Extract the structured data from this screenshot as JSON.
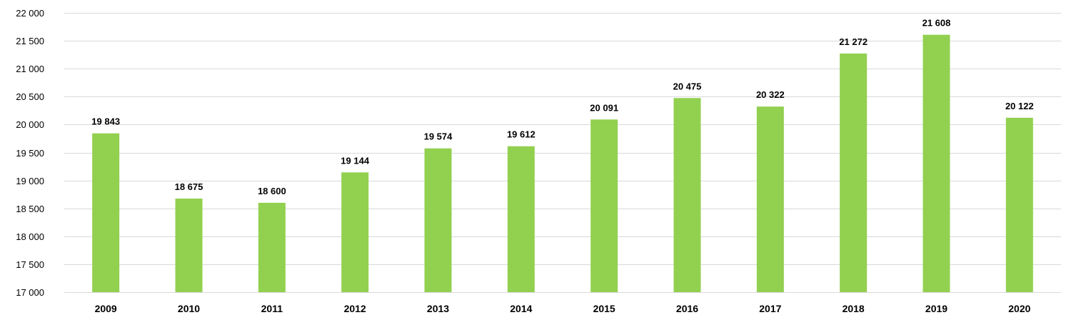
{
  "chart_data": {
    "type": "bar",
    "title": "",
    "xlabel": "",
    "ylabel": "",
    "categories": [
      "2009",
      "2010",
      "2011",
      "2012",
      "2013",
      "2014",
      "2015",
      "2016",
      "2017",
      "2018",
      "2019",
      "2020"
    ],
    "values": [
      19843,
      18675,
      18600,
      19144,
      19574,
      19612,
      20091,
      20475,
      20322,
      21272,
      21608,
      20122
    ],
    "data_labels": [
      "19 843",
      "18 675",
      "18 600",
      "19 144",
      "19 574",
      "19 612",
      "20 091",
      "20 475",
      "20 322",
      "21 272",
      "21 608",
      "20 122"
    ],
    "ylim": [
      17000,
      22000
    ],
    "yticks": [
      17000,
      17500,
      18000,
      18500,
      19000,
      19500,
      20000,
      20500,
      21000,
      21500,
      22000
    ],
    "ytick_labels": [
      "17 000",
      "17 500",
      "18 000",
      "18 500",
      "19 000",
      "19 500",
      "20 000",
      "20 500",
      "21 000",
      "21 500",
      "22 000"
    ],
    "grid": true,
    "legend": "none",
    "colors": {
      "bar": "#92d050",
      "grid": "#d9d9d9",
      "text": "#000000"
    }
  }
}
